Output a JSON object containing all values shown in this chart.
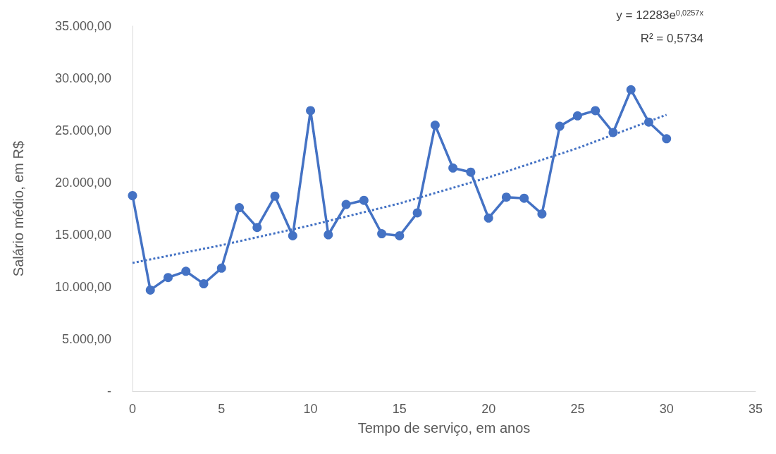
{
  "chart_data": {
    "type": "line",
    "xlabel": "Tempo de serviço, em anos",
    "ylabel": "Salário médio, em R$",
    "xlim": [
      0,
      35
    ],
    "xticks": [
      0,
      5,
      10,
      15,
      20,
      25,
      30,
      35
    ],
    "ylim": [
      0,
      35000
    ],
    "yticks": [
      {
        "value": 0,
        "label": "-"
      },
      {
        "value": 5000,
        "label": "5.000,00"
      },
      {
        "value": 10000,
        "label": "10.000,00"
      },
      {
        "value": 15000,
        "label": "15.000,00"
      },
      {
        "value": 20000,
        "label": "20.000,00"
      },
      {
        "value": 25000,
        "label": "25.000,00"
      },
      {
        "value": 30000,
        "label": "30.000,00"
      },
      {
        "value": 35000,
        "label": "35.000,00"
      }
    ],
    "grid": false,
    "series": [
      {
        "color": "#4472c4",
        "marker": "circle",
        "line_style": "solid",
        "x": [
          0,
          1,
          2,
          3,
          4,
          5,
          6,
          7,
          8,
          9,
          10,
          11,
          12,
          13,
          14,
          15,
          16,
          17,
          18,
          19,
          20,
          21,
          22,
          23,
          24,
          25,
          26,
          27,
          28,
          29,
          30
        ],
        "values": [
          18750,
          9700,
          10900,
          11500,
          10300,
          11800,
          17600,
          15700,
          18700,
          14900,
          26900,
          15000,
          17900,
          18300,
          15100,
          14900,
          17100,
          25500,
          21400,
          21000,
          16600,
          18600,
          18500,
          17000,
          25400,
          26400,
          26900,
          24800,
          28900,
          25800,
          24200
        ]
      },
      {
        "color": "#4472c4",
        "marker": "none",
        "line_style": "dotted",
        "x": [
          0,
          5,
          10,
          15,
          20,
          25,
          30
        ],
        "values": [
          12300,
          14000,
          15900,
          18000,
          20500,
          23300,
          26500
        ]
      }
    ],
    "annotations": [
      "y = 12283e$^{0,0257x}$",
      "R² = 0,5734"
    ]
  }
}
